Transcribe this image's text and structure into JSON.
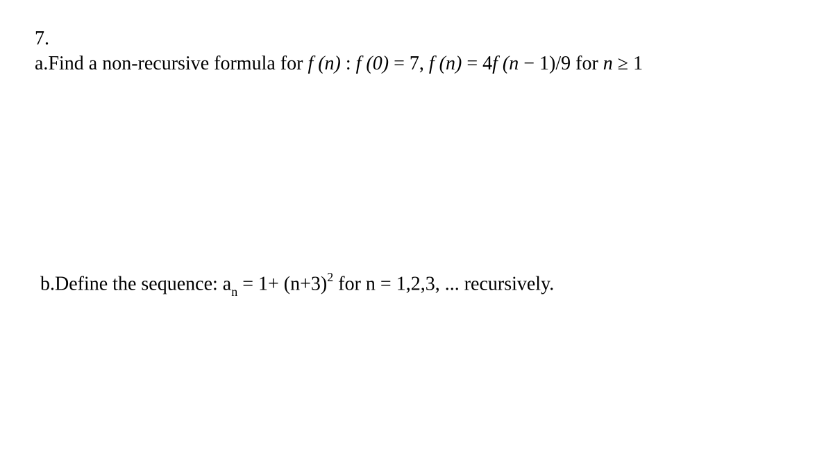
{
  "document": {
    "background_color": "#ffffff",
    "text_color": "#000000",
    "font_family": "Times New Roman",
    "base_fontsize": 28,
    "question_number": "7.",
    "part_a": {
      "label": "a.",
      "prefix": "Find a non-recursive formula for ",
      "fn_label": "f (n)",
      "colon": " :   ",
      "eq1_lhs": "f (0)",
      "eq1_eq": " = ",
      "eq1_rhs": "7",
      "comma": ", ",
      "eq2_lhs": "f (n)",
      "eq2_eq": " = ",
      "eq2_rhs_coef": "4",
      "eq2_rhs_fn": "f (n ",
      "eq2_minus": "−",
      "eq2_rhs_rest": " 1)/9",
      "for_text": "  for ",
      "cond_var": "n",
      "cond_op": " ≥ ",
      "cond_val": "1"
    },
    "part_b": {
      "label": "b.",
      "prefix": "Define the sequence:  ",
      "seq_var": "a",
      "seq_sub": "n",
      "eq": " = ",
      "rhs_1": "1+ (n+3)",
      "rhs_sup": "2",
      "for_text": " for n = ",
      "range": "1,2,3, ...",
      "suffix": " recursively."
    }
  }
}
